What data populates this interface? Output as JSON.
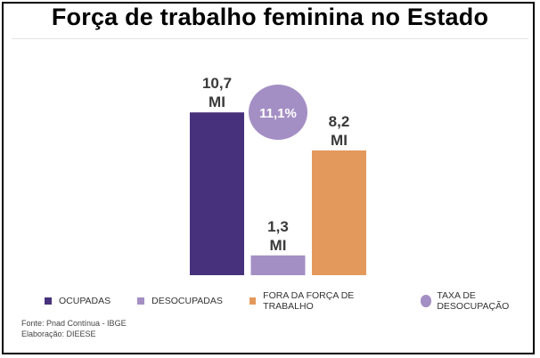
{
  "title": "Força de trabalho feminina no Estado",
  "chart_data": {
    "type": "bar",
    "unit_label": "MI",
    "categories": [
      "OCUPADAS",
      "DESOCUPADAS",
      "FORA DA FORÇA DE TRABALHO"
    ],
    "values": [
      10.7,
      1.3,
      8.2
    ],
    "value_labels": [
      "10,7",
      "1,3",
      "8,2"
    ],
    "colors": [
      "#47317c",
      "#a48fc4",
      "#e4995c"
    ],
    "ylim": [
      0,
      12
    ],
    "rate": {
      "label": "TAXA DE DESOCUPAÇÃO",
      "value": 11.1,
      "value_label": "11,1%",
      "color": "#a48fc4"
    }
  },
  "legend": [
    {
      "label": "OCUPADAS",
      "color": "#47317c"
    },
    {
      "label": "DESOCUPADAS",
      "color": "#a48fc4"
    },
    {
      "label": "FORA DA FORÇA DE TRABALHO",
      "color": "#e4995c"
    },
    {
      "label": "TAXA DE DESOCUPAÇÃO",
      "color": "#a48fc4"
    }
  ],
  "source": {
    "line1": "Fonte: Pnad Contínua - IBGE",
    "line2": "Elaboração: DIEESE"
  }
}
